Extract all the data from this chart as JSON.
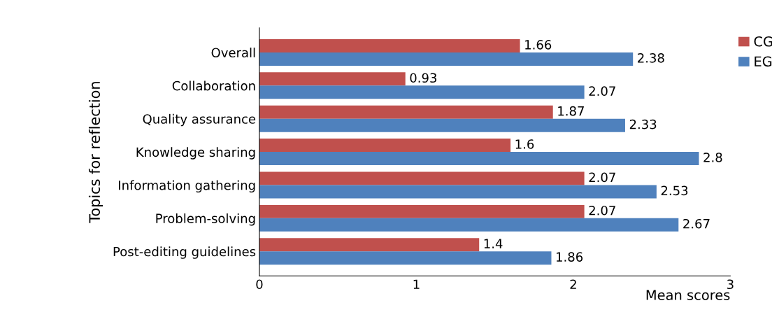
{
  "chart_data": {
    "type": "bar",
    "orientation": "horizontal",
    "ylabel": "Topics for reflection",
    "xlabel": "Mean scores",
    "categories": [
      "Overall",
      "Collaboration",
      "Quality assurance",
      "Knowledge sharing",
      "Information gathering",
      "Problem-solving",
      "Post-editing guidelines"
    ],
    "series": [
      {
        "name": "CG",
        "color": "#c0504d",
        "values": [
          1.66,
          0.93,
          1.87,
          1.6,
          2.07,
          2.07,
          1.4
        ]
      },
      {
        "name": "EG",
        "color": "#4f81bd",
        "values": [
          2.38,
          2.07,
          2.33,
          2.8,
          2.53,
          2.67,
          1.86
        ]
      }
    ],
    "xlim": [
      0,
      3
    ],
    "xticks": [
      0,
      1,
      2,
      3
    ],
    "data_labels": true,
    "legend": "top right",
    "grid": false
  }
}
